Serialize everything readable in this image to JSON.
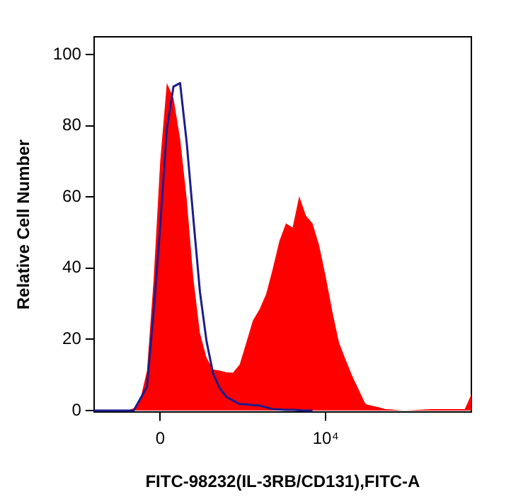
{
  "chart_data": {
    "type": "area",
    "xlabel": "FITC-98232(IL-3RB/CD131),FITC-A",
    "ylabel": "Relative Cell Number",
    "categories": [
      null,
      null,
      null,
      null,
      null,
      null,
      null,
      null,
      null,
      null,
      "0",
      null,
      null,
      null,
      null,
      null,
      null,
      null,
      null,
      null,
      null,
      null,
      null,
      null,
      null,
      null,
      null,
      null,
      null,
      null,
      null,
      null,
      null,
      null,
      null,
      "10⁴",
      null,
      null,
      null,
      null,
      null,
      null,
      null,
      null,
      null,
      null,
      null,
      null,
      null,
      null,
      null,
      null,
      null,
      null,
      null,
      null,
      null,
      null
    ],
    "ylim": [
      -0.5,
      105
    ],
    "yticks": [
      0,
      20,
      40,
      60,
      80,
      100
    ],
    "grid": false,
    "legend": false,
    "series": [
      {
        "color": "#ff0000",
        "values": [
          0,
          0,
          0,
          0,
          0,
          0,
          0.6,
          3.2,
          11.1,
          36.6,
          70,
          92,
          87.8,
          76.4,
          59.5,
          37.1,
          21.7,
          14.8,
          11.5,
          11.2,
          10.7,
          10.6,
          12.9,
          19,
          25.3,
          28.4,
          32.7,
          39.8,
          47.6,
          52.6,
          51.4,
          60.2,
          54.8,
          52.6,
          46.4,
          37.6,
          27.8,
          19.1,
          14.3,
          9.7,
          5.8,
          1.8,
          1.3,
          0.9,
          0.4,
          0.3,
          0.1,
          0,
          0.1,
          0.2,
          0.3,
          0.4,
          0.4,
          0.4,
          0.4,
          0.4,
          0.4,
          4.5
        ]
      },
      {
        "type": "line",
        "color": "#1c1c8c",
        "values": [
          0,
          0,
          0,
          0,
          0,
          0,
          0,
          3.3,
          6.6,
          27.5,
          51.7,
          79,
          91,
          92,
          75.3,
          54,
          33.3,
          19.4,
          10.3,
          6.2,
          3.8,
          2.8,
          1.8,
          1.7,
          1.5,
          1.4,
          0.9,
          0.4,
          0.3,
          0.2,
          0.2,
          0.1,
          0,
          0,
          null,
          null,
          null,
          null,
          null,
          null,
          null,
          null,
          null,
          null,
          null,
          null,
          null,
          null,
          null,
          null,
          null,
          null,
          null,
          null,
          null,
          null,
          null,
          null
        ]
      }
    ]
  }
}
